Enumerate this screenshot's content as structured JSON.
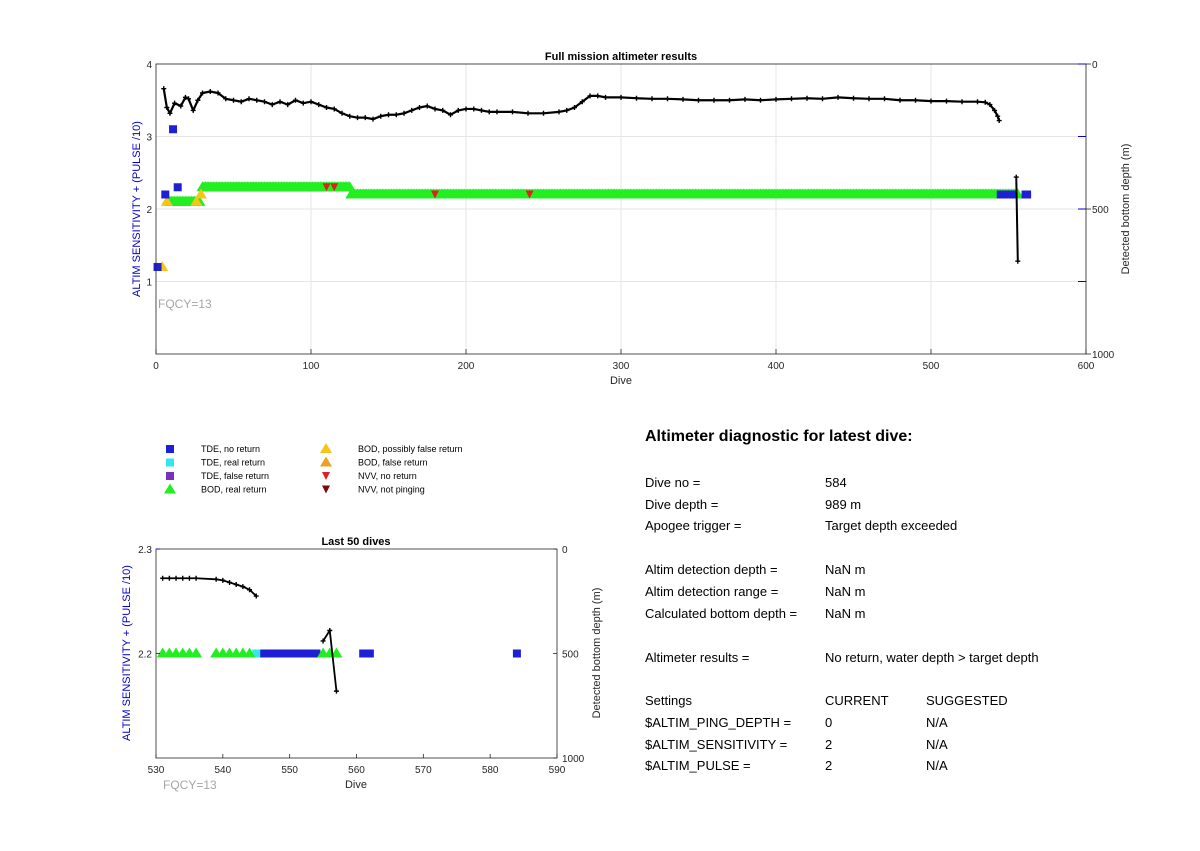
{
  "colors": {
    "tde_no_return": "#1f1fd6",
    "tde_real_return": "#33e6f0",
    "tde_false_return": "#7b2fbe",
    "bod_real_return": "#22ee22",
    "bod_possibly_false": "#f5c518",
    "bod_false_return": "#f0a020",
    "nvv_no_return": "#e02020",
    "nvv_not_pinging": "#7a0a0a",
    "depth_track": "#000000",
    "left_axis": "#0000cc",
    "fqcy": "#a6a6a6"
  },
  "legend": {
    "items": [
      {
        "label": "TDE, no return",
        "marker": "square",
        "color": "#1f1fd6"
      },
      {
        "label": "TDE, real return",
        "marker": "square",
        "color": "#33e6f0"
      },
      {
        "label": "TDE, false return",
        "marker": "square",
        "color": "#7b2fbe"
      },
      {
        "label": "BOD, real return",
        "marker": "triangle-up",
        "color": "#22ee22"
      },
      {
        "label": "BOD, possibly false return",
        "marker": "triangle-up",
        "color": "#f5c518"
      },
      {
        "label": "BOD, false return",
        "marker": "triangle-up",
        "color": "#f0a020"
      },
      {
        "label": "NVV, no return",
        "marker": "triangle-down",
        "color": "#e02020"
      },
      {
        "label": "NVV, not pinging",
        "marker": "triangle-down",
        "color": "#7a0a0a"
      }
    ]
  },
  "chart_data": [
    {
      "type": "scatter",
      "title": "Full mission altimeter results",
      "xlabel": "Dive",
      "ylabel": "ALTIM SENSITIVITY + (PULSE /10)",
      "y2label": "Detected bottom depth (m)",
      "xlim": [
        0,
        600
      ],
      "ylim": [
        0,
        4
      ],
      "y2lim": [
        1000,
        0
      ],
      "y2_reversed": true,
      "xticks": [
        "0",
        "100",
        "200",
        "300",
        "400",
        "500",
        "600"
      ],
      "yticks": [
        "1",
        "2",
        "3",
        "4"
      ],
      "y2ticks": [
        "0",
        "500",
        "1000"
      ],
      "grid": true,
      "annotation": "FQCY=13",
      "tde_no_return": [
        [
          1,
          1.2
        ],
        [
          6,
          2.2
        ],
        [
          11,
          3.1
        ],
        [
          14,
          2.3
        ],
        [
          545,
          2.2
        ],
        [
          548,
          2.2
        ],
        [
          552,
          2.2
        ],
        [
          561,
          2.2
        ],
        [
          562,
          2.2
        ]
      ],
      "bod_possibly_false": [
        [
          4,
          1.2
        ],
        [
          7,
          2.1
        ],
        [
          26,
          2.1
        ],
        [
          29,
          2.2
        ]
      ],
      "bod_real_return_segments": [
        {
          "x_start": 8,
          "x_end": 28,
          "y": 2.1
        },
        {
          "x_start": 30,
          "x_end": 125,
          "y": 2.3
        },
        {
          "x_start": 126,
          "x_end": 556,
          "y": 2.2
        }
      ],
      "nvv_no_return": [
        [
          110,
          2.3
        ],
        [
          115,
          2.3
        ],
        [
          180,
          2.2
        ],
        [
          241,
          2.2
        ]
      ],
      "bottom_depth_track": [
        [
          5,
          85
        ],
        [
          7,
          150
        ],
        [
          9,
          170
        ],
        [
          12,
          135
        ],
        [
          16,
          145
        ],
        [
          19,
          115
        ],
        [
          21,
          120
        ],
        [
          24,
          160
        ],
        [
          27,
          125
        ],
        [
          30,
          100
        ],
        [
          35,
          95
        ],
        [
          40,
          100
        ],
        [
          45,
          120
        ],
        [
          50,
          125
        ],
        [
          55,
          130
        ],
        [
          60,
          120
        ],
        [
          65,
          125
        ],
        [
          70,
          130
        ],
        [
          75,
          140
        ],
        [
          80,
          130
        ],
        [
          85,
          140
        ],
        [
          90,
          125
        ],
        [
          95,
          135
        ],
        [
          100,
          130
        ],
        [
          105,
          140
        ],
        [
          110,
          150
        ],
        [
          115,
          155
        ],
        [
          120,
          170
        ],
        [
          125,
          180
        ],
        [
          130,
          185
        ],
        [
          135,
          185
        ],
        [
          140,
          190
        ],
        [
          145,
          180
        ],
        [
          150,
          175
        ],
        [
          155,
          175
        ],
        [
          160,
          170
        ],
        [
          165,
          160
        ],
        [
          170,
          150
        ],
        [
          175,
          145
        ],
        [
          180,
          155
        ],
        [
          185,
          160
        ],
        [
          190,
          175
        ],
        [
          195,
          160
        ],
        [
          200,
          155
        ],
        [
          205,
          155
        ],
        [
          210,
          160
        ],
        [
          215,
          165
        ],
        [
          220,
          165
        ],
        [
          230,
          165
        ],
        [
          240,
          170
        ],
        [
          250,
          170
        ],
        [
          260,
          165
        ],
        [
          265,
          160
        ],
        [
          270,
          150
        ],
        [
          275,
          130
        ],
        [
          280,
          110
        ],
        [
          285,
          110
        ],
        [
          290,
          115
        ],
        [
          300,
          115
        ],
        [
          310,
          118
        ],
        [
          320,
          120
        ],
        [
          330,
          120
        ],
        [
          340,
          122
        ],
        [
          350,
          125
        ],
        [
          360,
          125
        ],
        [
          370,
          125
        ],
        [
          380,
          122
        ],
        [
          390,
          125
        ],
        [
          400,
          122
        ],
        [
          410,
          120
        ],
        [
          420,
          118
        ],
        [
          430,
          120
        ],
        [
          440,
          115
        ],
        [
          450,
          118
        ],
        [
          460,
          120
        ],
        [
          470,
          120
        ],
        [
          480,
          125
        ],
        [
          490,
          125
        ],
        [
          500,
          128
        ],
        [
          510,
          128
        ],
        [
          520,
          130
        ],
        [
          530,
          130
        ],
        [
          535,
          132
        ],
        [
          538,
          140
        ],
        [
          541,
          160
        ],
        [
          543,
          180
        ],
        [
          544,
          195
        ]
      ],
      "late_depth_segment": [
        [
          555,
          390
        ],
        [
          556,
          680
        ]
      ]
    },
    {
      "type": "scatter",
      "title": "Last 50 dives",
      "xlabel": "Dive",
      "ylabel": "ALTIM SENSITIVITY + (PULSE /10)",
      "y2label": "Detected bottom depth (m)",
      "xlim": [
        530,
        590
      ],
      "ylim": [
        2.1,
        2.3
      ],
      "y2lim": [
        1000,
        0
      ],
      "y2_reversed": true,
      "xticks": [
        "530",
        "540",
        "550",
        "560",
        "570",
        "580",
        "590"
      ],
      "yticks": [
        "2.2",
        "2.3"
      ],
      "y2ticks": [
        "0",
        "500",
        "1000"
      ],
      "grid": false,
      "annotation": "FQCY=13",
      "bod_real_return_x": [
        531,
        532,
        533,
        534,
        535,
        536,
        539,
        540,
        541,
        542,
        543,
        544,
        555,
        556,
        557
      ],
      "tde_real_return_x": [
        545
      ],
      "tde_no_return_x": [
        546,
        547,
        548,
        549,
        550,
        551,
        552,
        553,
        554,
        561,
        562,
        584
      ],
      "value_y": 2.2,
      "bottom_depth_track": [
        [
          531,
          140
        ],
        [
          532,
          140
        ],
        [
          533,
          140
        ],
        [
          534,
          140
        ],
        [
          535,
          140
        ],
        [
          536,
          140
        ],
        [
          539,
          145
        ],
        [
          540,
          150
        ],
        [
          541,
          160
        ],
        [
          542,
          170
        ],
        [
          543,
          180
        ],
        [
          544,
          195
        ],
        [
          545,
          225
        ]
      ],
      "late_depth_segment": [
        [
          555,
          440
        ],
        [
          556,
          390
        ],
        [
          557,
          680
        ]
      ]
    }
  ],
  "diagnostic": {
    "title": "Altimeter diagnostic for latest dive:",
    "rows": [
      {
        "label": "Dive no =",
        "value": "584"
      },
      {
        "label": "Dive depth =",
        "value": "989 m"
      },
      {
        "label": "Apogee trigger =",
        "value": "Target depth exceeded"
      },
      {
        "label": "Altim detection depth =",
        "value": "NaN m"
      },
      {
        "label": "Altim detection range =",
        "value": "NaN m"
      },
      {
        "label": "Calculated bottom depth =",
        "value": "NaN m"
      },
      {
        "label": "Altimeter results =",
        "value": "No return, water depth > target depth"
      }
    ],
    "settings_header": {
      "label": "Settings",
      "current": "CURRENT",
      "suggested": "SUGGESTED"
    },
    "settings": [
      {
        "name": "$ALTIM_PING_DEPTH =",
        "current": "0",
        "suggested": "N/A"
      },
      {
        "name": "$ALTIM_SENSITIVITY =",
        "current": "2",
        "suggested": "N/A"
      },
      {
        "name": "$ALTIM_PULSE =",
        "current": "2",
        "suggested": "N/A"
      }
    ]
  }
}
